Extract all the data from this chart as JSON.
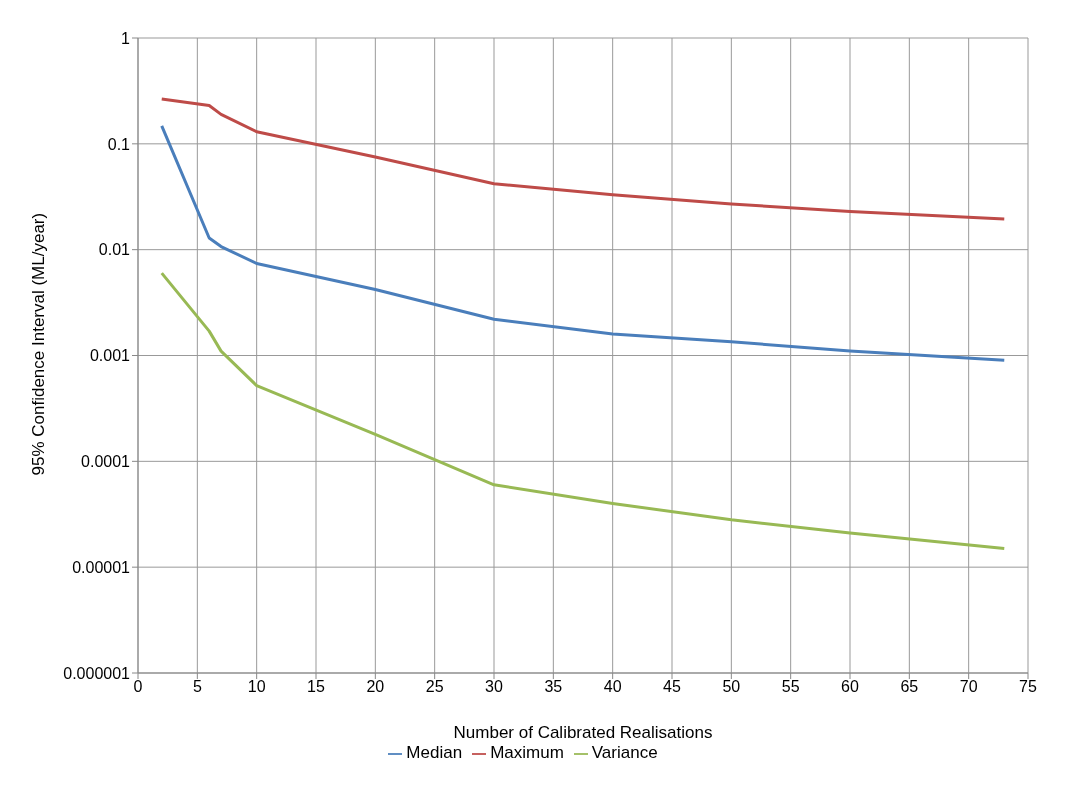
{
  "chart_data": {
    "type": "line",
    "xlabel": "Number of Calibrated Realisations",
    "ylabel": "95% Confidence Interval (ML/year)",
    "x": [
      2,
      6,
      7,
      10,
      20,
      30,
      40,
      50,
      60,
      73
    ],
    "series": [
      {
        "name": "Median",
        "color": "#4a7ebb",
        "values": [
          0.148,
          0.0129,
          0.0107,
          0.0074,
          0.0042,
          0.0022,
          0.0016,
          0.00135,
          0.0011,
          0.0009
        ]
      },
      {
        "name": "Maximum",
        "color": "#be4b48",
        "values": [
          0.265,
          0.23,
          0.19,
          0.13,
          0.075,
          0.042,
          0.033,
          0.027,
          0.023,
          0.0195
        ]
      },
      {
        "name": "Variance",
        "color": "#98b954",
        "values": [
          0.006,
          0.0017,
          0.0011,
          0.00052,
          0.00018,
          6e-05,
          4e-05,
          2.8e-05,
          2.1e-05,
          1.5e-05
        ]
      }
    ],
    "xlim": [
      0,
      75
    ],
    "xticks": [
      0,
      5,
      10,
      15,
      20,
      25,
      30,
      35,
      40,
      45,
      50,
      55,
      60,
      65,
      70,
      75
    ],
    "ylim": [
      1e-06,
      1
    ],
    "yticks": [
      {
        "value": 1e-06,
        "label": "0.000001"
      },
      {
        "value": 1e-05,
        "label": "0.00001"
      },
      0.0001,
      0.001,
      0.01,
      0.1,
      1
    ],
    "log": "y",
    "grid": true,
    "legend": "bottom",
    "marker": "none",
    "line_style": "solid"
  }
}
